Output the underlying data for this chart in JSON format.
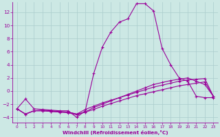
{
  "bg_color": "#cce8e4",
  "grid_color": "#aacccc",
  "line_color": "#990099",
  "xlabel": "Windchill (Refroidissement éolien,°C)",
  "xlabel_color": "#990099",
  "tick_color": "#990099",
  "xlim": [
    -0.5,
    23.5
  ],
  "ylim": [
    -4.8,
    13.5
  ],
  "yticks": [
    -4,
    -2,
    0,
    2,
    4,
    6,
    8,
    10,
    12
  ],
  "xticks": [
    0,
    1,
    2,
    3,
    4,
    5,
    6,
    7,
    8,
    9,
    10,
    11,
    12,
    13,
    14,
    15,
    16,
    17,
    18,
    19,
    20,
    21,
    22,
    23
  ],
  "line1_x": [
    0,
    1,
    2,
    3,
    4,
    5,
    6,
    7,
    8,
    9,
    10,
    11,
    12,
    13,
    14,
    15,
    16,
    17,
    18,
    19,
    20,
    21,
    22,
    23
  ],
  "line1_y": [
    -2.7,
    -1.2,
    -2.7,
    -2.8,
    -2.9,
    -3.0,
    -3.0,
    -4.0,
    -3.0,
    2.7,
    6.7,
    9.0,
    10.5,
    11.0,
    13.3,
    13.3,
    12.2,
    6.5,
    4.0,
    2.0,
    1.5,
    -0.8,
    -1.0,
    -1.0
  ],
  "line2_x": [
    0,
    1,
    2,
    3,
    4,
    5,
    6,
    7,
    8,
    9,
    10,
    11,
    12,
    13,
    14,
    15,
    16,
    17,
    18,
    19,
    20,
    21,
    22,
    23
  ],
  "line2_y": [
    -2.7,
    -3.5,
    -3.0,
    -2.9,
    -3.0,
    -3.1,
    -3.2,
    -3.5,
    -3.2,
    -2.5,
    -2.0,
    -1.5,
    -1.0,
    -0.5,
    0.0,
    0.5,
    1.0,
    1.3,
    1.6,
    1.8,
    2.0,
    1.5,
    1.0,
    -0.8
  ],
  "line3_x": [
    0,
    1,
    2,
    3,
    4,
    5,
    6,
    7,
    8,
    9,
    10,
    11,
    12,
    13,
    14,
    15,
    16,
    17,
    18,
    19,
    20,
    21,
    22,
    23
  ],
  "line3_y": [
    -2.7,
    -3.5,
    -3.0,
    -3.0,
    -3.1,
    -3.2,
    -3.3,
    -3.6,
    -3.2,
    -2.8,
    -2.3,
    -1.9,
    -1.5,
    -1.1,
    -0.7,
    -0.4,
    -0.1,
    0.2,
    0.5,
    0.8,
    1.0,
    1.2,
    1.4,
    -0.8
  ],
  "line4_x": [
    0,
    1,
    2,
    3,
    4,
    5,
    6,
    7,
    8,
    9,
    10,
    11,
    12,
    13,
    14,
    15,
    16,
    17,
    18,
    19,
    20,
    21,
    22,
    23
  ],
  "line4_y": [
    -2.7,
    -3.5,
    -3.0,
    -3.0,
    -3.1,
    -3.2,
    -3.2,
    -3.5,
    -2.8,
    -2.3,
    -1.8,
    -1.4,
    -1.0,
    -0.6,
    -0.2,
    0.2,
    0.6,
    0.9,
    1.2,
    1.5,
    1.7,
    1.8,
    1.9,
    -0.8
  ]
}
